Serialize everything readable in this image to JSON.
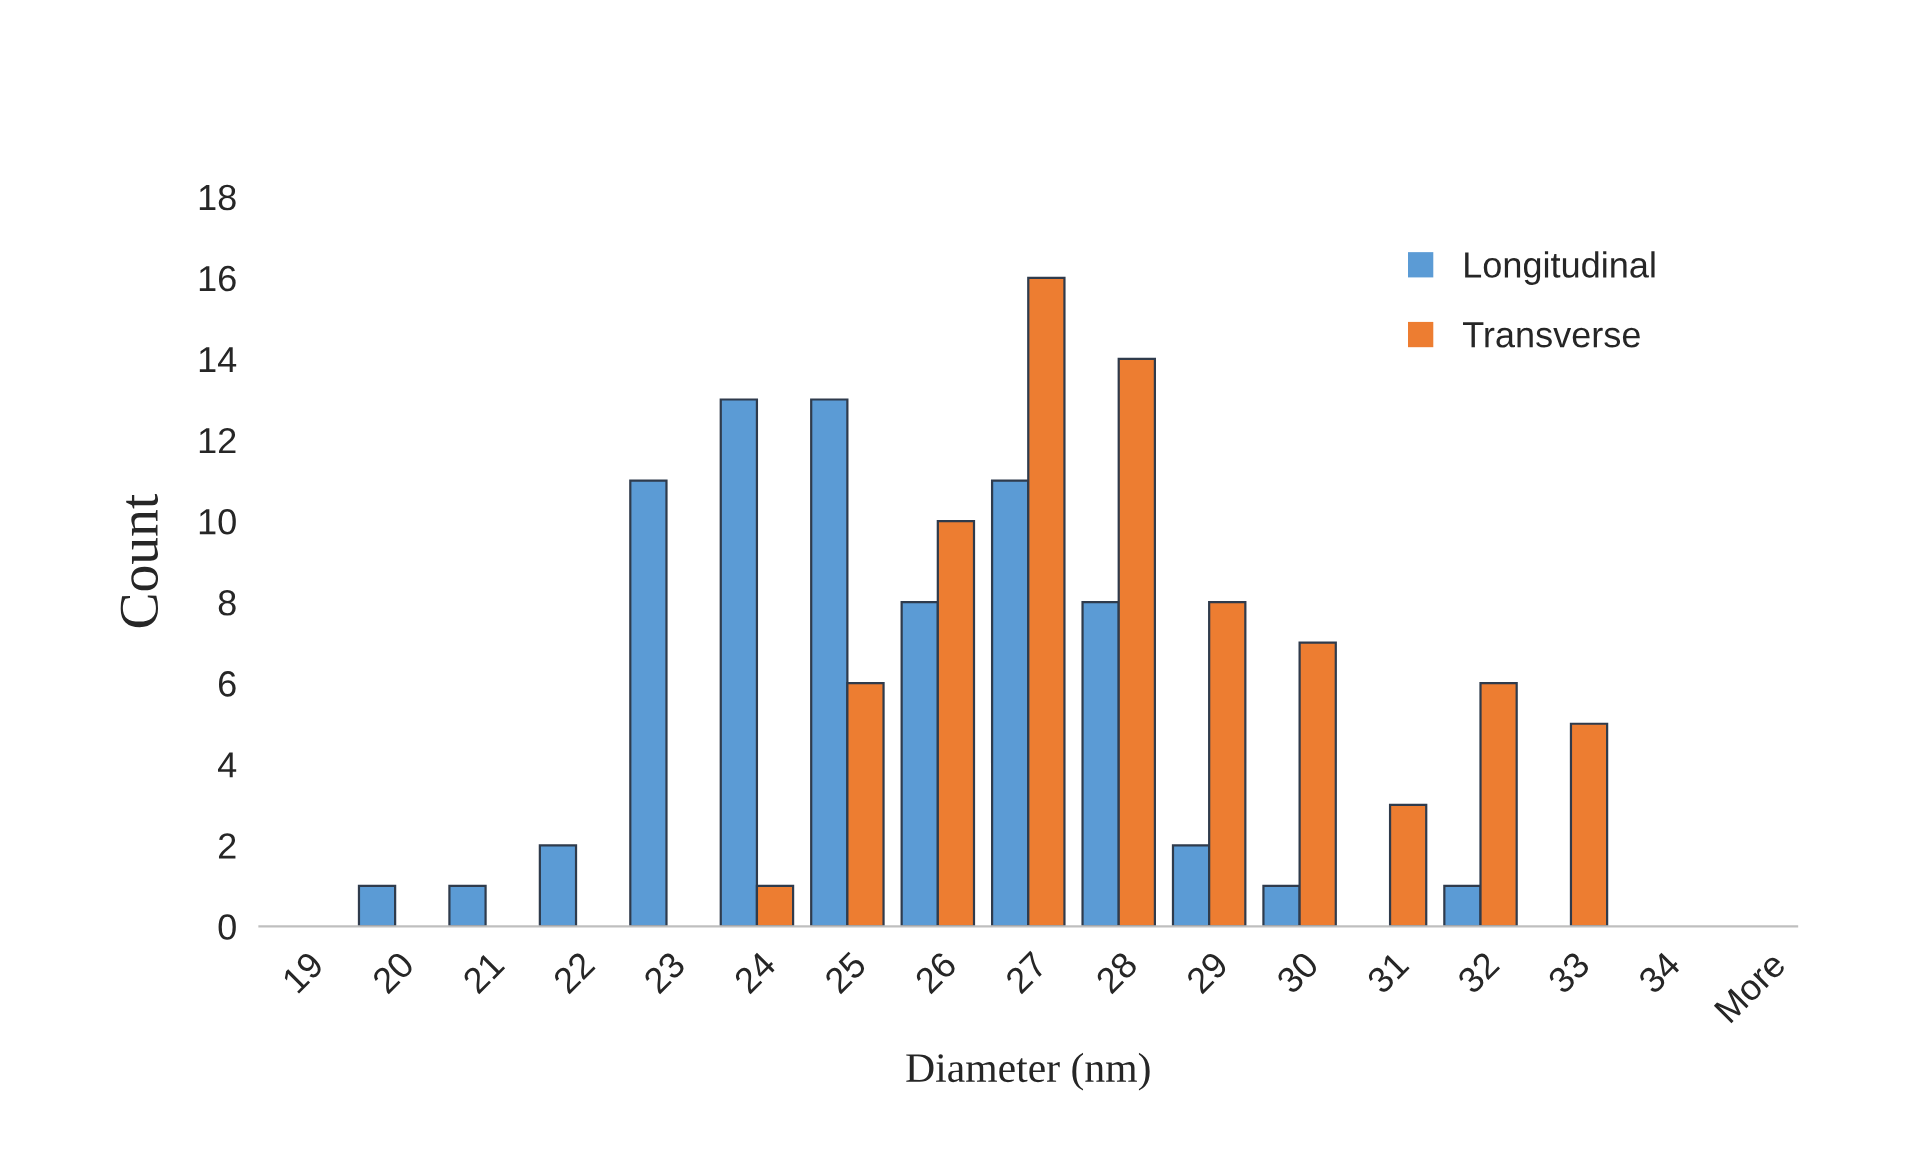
{
  "chart_data": {
    "type": "bar",
    "xlabel": "Diameter (nm)",
    "ylabel": "Count",
    "categories": [
      "19",
      "20",
      "21",
      "22",
      "23",
      "24",
      "25",
      "26",
      "27",
      "28",
      "29",
      "30",
      "31",
      "32",
      "33",
      "34",
      "More"
    ],
    "series": [
      {
        "name": "Longitudinal",
        "color": "#5b9bd5",
        "values": [
          0,
          1,
          1,
          2,
          11,
          13,
          13,
          8,
          11,
          8,
          2,
          1,
          0,
          1,
          0,
          0,
          0
        ]
      },
      {
        "name": "Transverse",
        "color": "#ed7d31",
        "values": [
          0,
          0,
          0,
          0,
          0,
          1,
          6,
          10,
          16,
          14,
          8,
          7,
          3,
          6,
          5,
          0,
          0
        ]
      }
    ],
    "ylim": [
      0,
      18
    ],
    "yticks": [
      0,
      2,
      4,
      6,
      8,
      10,
      12,
      14,
      16,
      18
    ],
    "grid": false,
    "legend": "top right"
  }
}
